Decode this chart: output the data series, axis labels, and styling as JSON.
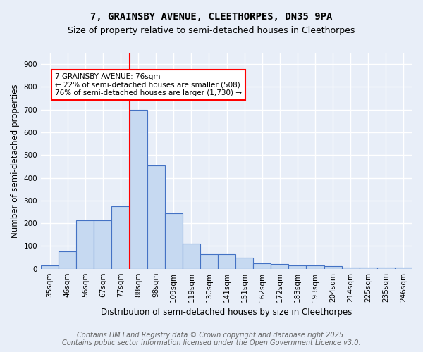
{
  "title": "7, GRAINSBY AVENUE, CLEETHORPES, DN35 9PA",
  "subtitle": "Size of property relative to semi-detached houses in Cleethorpes",
  "xlabel": "Distribution of semi-detached houses by size in Cleethorpes",
  "ylabel": "Number of semi-detached properties",
  "footnote": "Contains HM Land Registry data © Crown copyright and database right 2025.\nContains public sector information licensed under the Open Government Licence v3.0.",
  "bar_labels": [
    "35sqm",
    "46sqm",
    "56sqm",
    "67sqm",
    "77sqm",
    "88sqm",
    "98sqm",
    "109sqm",
    "119sqm",
    "130sqm",
    "141sqm",
    "151sqm",
    "162sqm",
    "172sqm",
    "183sqm",
    "193sqm",
    "204sqm",
    "214sqm",
    "225sqm",
    "235sqm",
    "246sqm"
  ],
  "bar_values": [
    14,
    75,
    213,
    213,
    275,
    700,
    455,
    245,
    110,
    65,
    65,
    50,
    25,
    20,
    15,
    15,
    10,
    5,
    5,
    5,
    5
  ],
  "bar_color": "#c6d9f1",
  "bar_edge_color": "#4472c4",
  "property_line_label_idx": 4,
  "property_line_color": "red",
  "ylim": [
    0,
    950
  ],
  "yticks": [
    0,
    100,
    200,
    300,
    400,
    500,
    600,
    700,
    800,
    900
  ],
  "annotation_text": "7 GRAINSBY AVENUE: 76sqm\n← 22% of semi-detached houses are smaller (508)\n76% of semi-detached houses are larger (1,730) →",
  "annotation_box_color": "white",
  "annotation_edge_color": "red",
  "background_color": "#e8eef8",
  "grid_color": "white",
  "title_fontsize": 10,
  "subtitle_fontsize": 9,
  "axis_label_fontsize": 8.5,
  "tick_fontsize": 7.5,
  "annotation_fontsize": 7.5,
  "footnote_fontsize": 7
}
